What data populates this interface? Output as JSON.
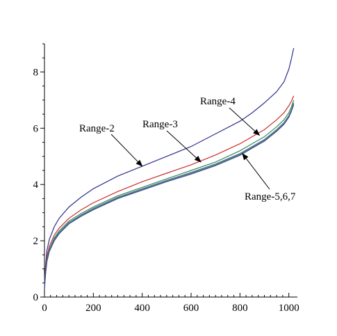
{
  "chart_data": {
    "type": "line",
    "title": "",
    "xlabel": "",
    "ylabel": "",
    "xlim": [
      0,
      1035
    ],
    "ylim": [
      0,
      9
    ],
    "grid": false,
    "x_ticks": [
      0,
      200,
      400,
      600,
      800,
      1000
    ],
    "x_tick_labels": [
      "0",
      "200",
      "400",
      "600",
      "800",
      "1000"
    ],
    "y_ticks": [
      0,
      2,
      4,
      6,
      8
    ],
    "y_tick_labels": [
      "0",
      "2",
      "4",
      "6",
      "8"
    ],
    "x": [
      0,
      5,
      10,
      20,
      40,
      60,
      100,
      150,
      200,
      300,
      400,
      500,
      600,
      700,
      800,
      850,
      900,
      950,
      980,
      1000,
      1010,
      1020
    ],
    "series": [
      {
        "id": "range-2",
        "color": "#2f2f8f",
        "values": [
          0.55,
          1.2,
          1.65,
          2.05,
          2.5,
          2.8,
          3.2,
          3.55,
          3.85,
          4.3,
          4.65,
          5.0,
          5.35,
          5.8,
          6.25,
          6.55,
          6.9,
          7.3,
          7.65,
          8.1,
          8.45,
          8.85
        ]
      },
      {
        "id": "range-3",
        "color": "#cc2a2a",
        "values": [
          0.4,
          1.05,
          1.45,
          1.8,
          2.2,
          2.45,
          2.8,
          3.1,
          3.35,
          3.75,
          4.1,
          4.4,
          4.7,
          5.05,
          5.45,
          5.7,
          5.95,
          6.3,
          6.55,
          6.8,
          6.95,
          7.15
        ]
      },
      {
        "id": "range-4",
        "color": "#2e8b57",
        "values": [
          0.35,
          0.95,
          1.35,
          1.7,
          2.1,
          2.35,
          2.7,
          2.97,
          3.2,
          3.6,
          3.9,
          4.2,
          4.5,
          4.8,
          5.2,
          5.45,
          5.7,
          6.05,
          6.3,
          6.55,
          6.75,
          7.0
        ]
      },
      {
        "id": "range-5",
        "color": "#5a6a9a",
        "values": [
          0.33,
          0.92,
          1.3,
          1.67,
          2.05,
          2.3,
          2.65,
          2.92,
          3.15,
          3.55,
          3.85,
          4.15,
          4.43,
          4.73,
          5.1,
          5.35,
          5.6,
          5.95,
          6.2,
          6.45,
          6.65,
          6.9
        ]
      },
      {
        "id": "range-6",
        "color": "#4e7f8a",
        "values": [
          0.32,
          0.9,
          1.28,
          1.65,
          2.03,
          2.28,
          2.62,
          2.9,
          3.12,
          3.52,
          3.82,
          4.12,
          4.4,
          4.7,
          5.07,
          5.32,
          5.57,
          5.92,
          6.17,
          6.42,
          6.62,
          6.87
        ]
      },
      {
        "id": "range-7",
        "color": "#3d4f80",
        "values": [
          0.3,
          0.88,
          1.26,
          1.62,
          2.0,
          2.25,
          2.6,
          2.87,
          3.1,
          3.5,
          3.8,
          4.1,
          4.37,
          4.67,
          5.04,
          5.29,
          5.54,
          5.89,
          6.14,
          6.39,
          6.59,
          6.84
        ]
      }
    ],
    "annotations": [
      {
        "id": "range-2",
        "text": "Range-2",
        "target": [
          400,
          4.65
        ]
      },
      {
        "id": "range-3",
        "text": "Range-3",
        "target": [
          640,
          4.8
        ]
      },
      {
        "id": "range-4",
        "text": "Range-4",
        "target": [
          880,
          5.75
        ]
      },
      {
        "id": "range-567",
        "text": "Range-5,6,7",
        "target": [
          810,
          5.1
        ]
      }
    ]
  }
}
